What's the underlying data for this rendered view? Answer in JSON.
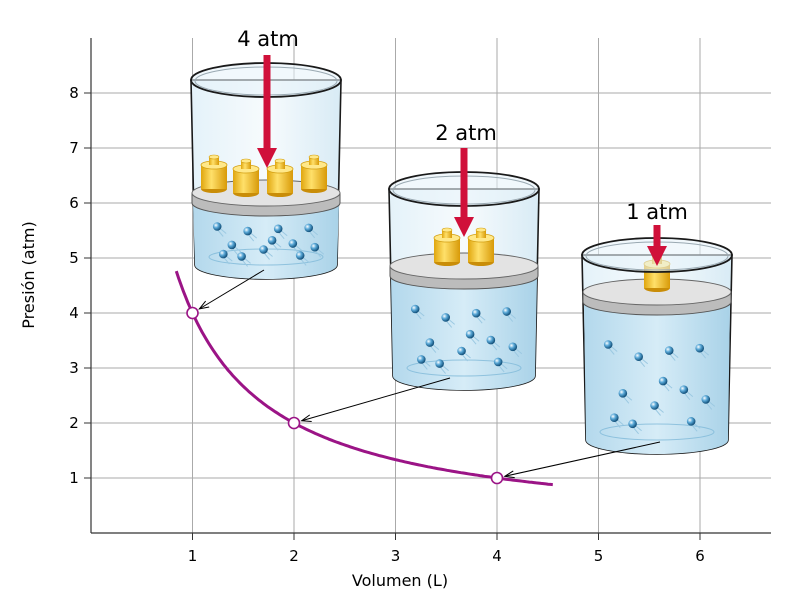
{
  "chart_data": {
    "type": "line",
    "xlabel": "Volumen (L)",
    "ylabel": "Presión (atm)",
    "x_ticks": [
      "1",
      "2",
      "3",
      "4",
      "5",
      "6"
    ],
    "y_ticks": [
      "1",
      "2",
      "3",
      "4",
      "5",
      "6",
      "7",
      "8"
    ],
    "xlim": [
      0,
      6.7
    ],
    "ylim": [
      0,
      8.9
    ],
    "grid": true,
    "curve": {
      "relation": "P = 4 / V",
      "x_range": [
        0.84,
        4.55
      ],
      "color": "#9b1486"
    },
    "points": [
      {
        "x": 1,
        "y": 4
      },
      {
        "x": 2,
        "y": 2
      },
      {
        "x": 4,
        "y": 1
      }
    ],
    "annotations": [
      {
        "label": "4 atm",
        "weights": 4,
        "point_index": 0
      },
      {
        "label": "2 atm",
        "weights": 2,
        "point_index": 1
      },
      {
        "label": "1 atm",
        "weights": 1,
        "point_index": 2
      }
    ],
    "colors": {
      "arrow": "#d0103a",
      "weight": "#f2c12e",
      "liquid": "#bfe0f1",
      "grid": "#aaaaaa"
    }
  }
}
